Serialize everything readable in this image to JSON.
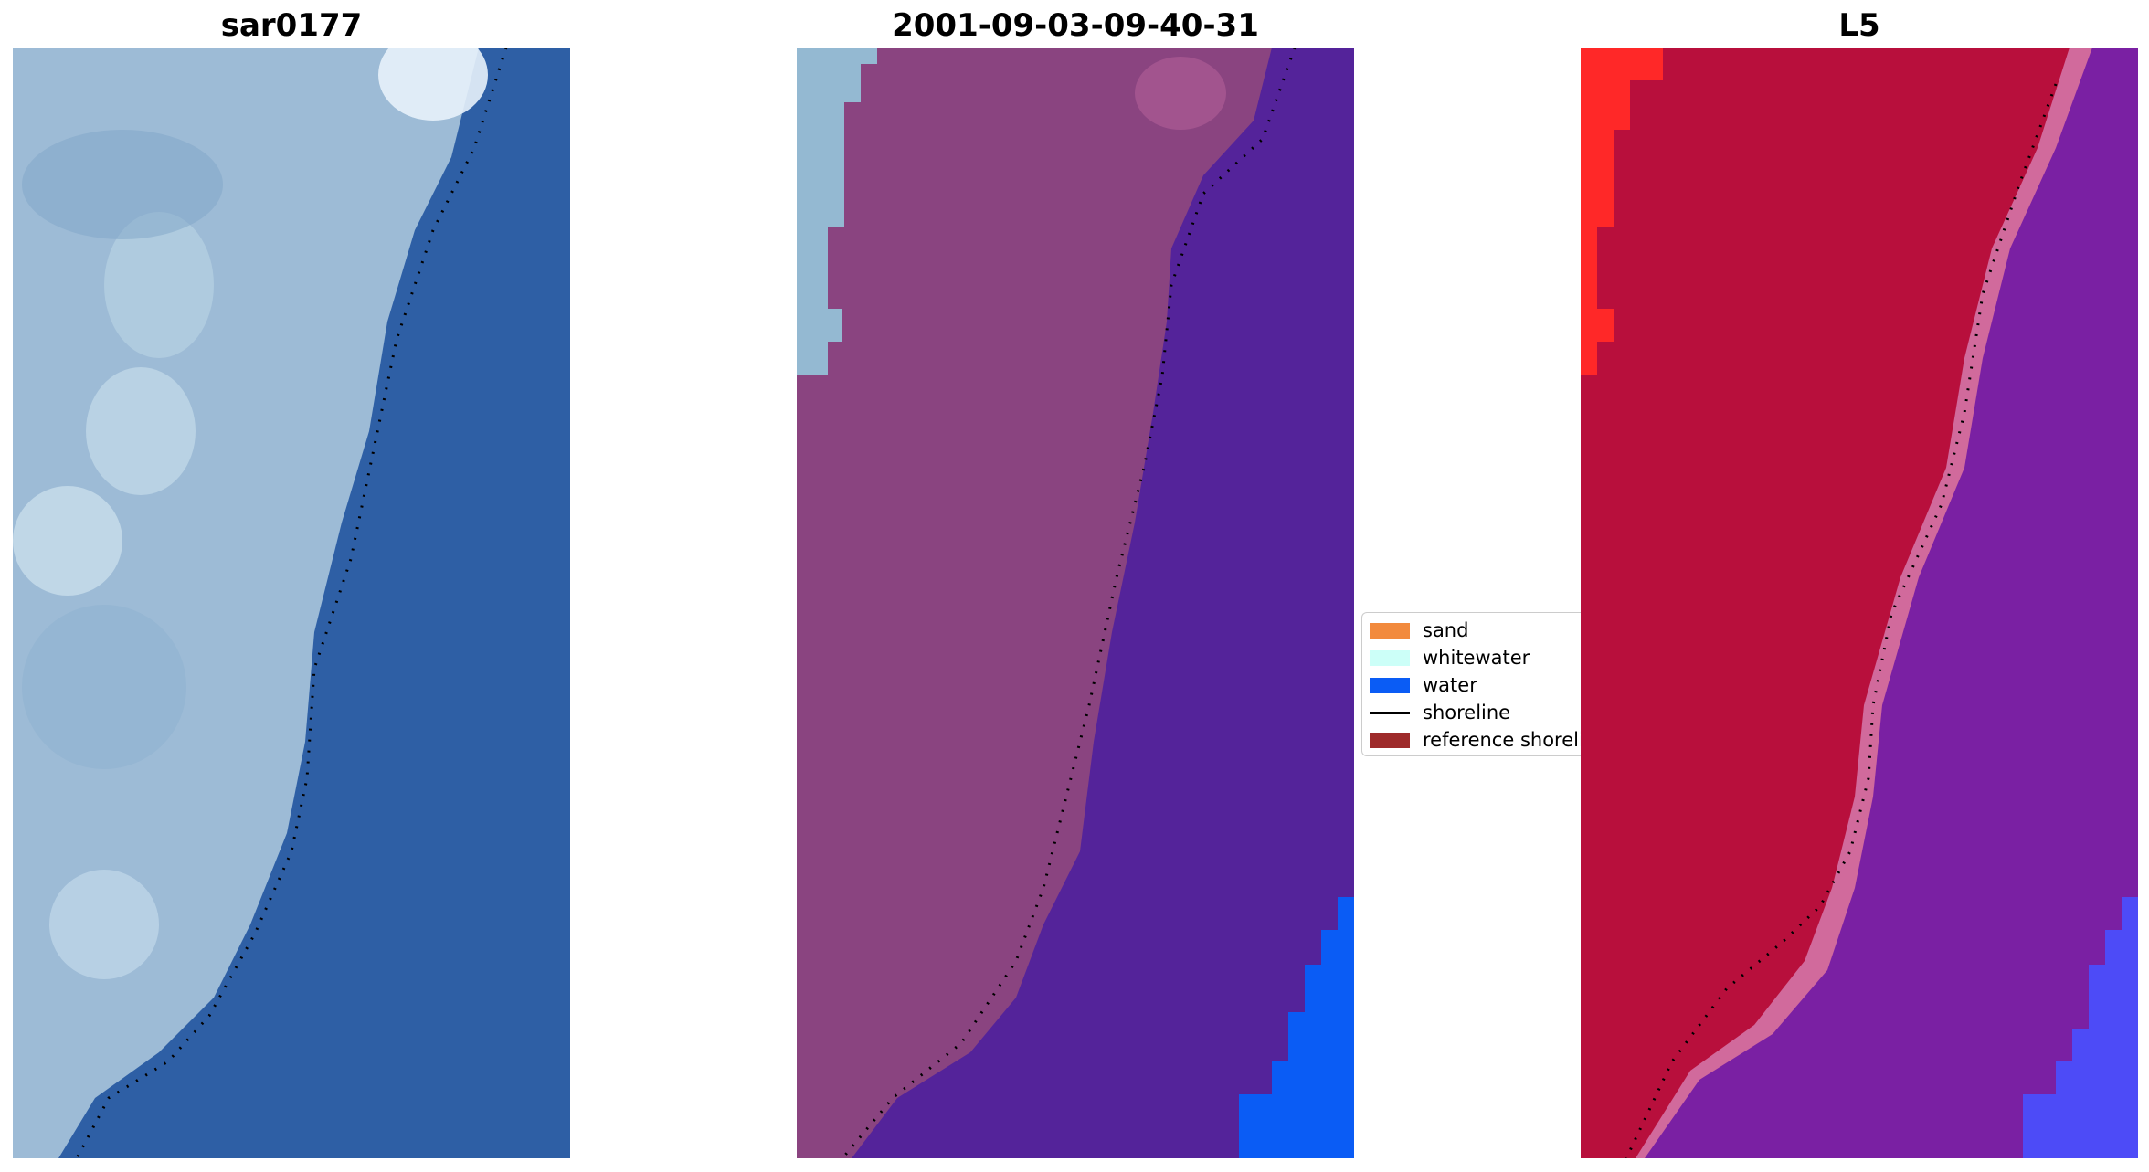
{
  "panels": [
    {
      "id": "rgb",
      "title": "sar0177"
    },
    {
      "id": "classified",
      "title": "2001-09-03-09-40-31"
    },
    {
      "id": "mndwi",
      "title": "L5"
    }
  ],
  "legend": {
    "items": [
      {
        "label": "sand",
        "color": "#f28a3d",
        "kind": "swatch"
      },
      {
        "label": "whitewater",
        "color": "#ccfff8",
        "kind": "swatch"
      },
      {
        "label": "water",
        "color": "#0a5cf5",
        "kind": "swatch"
      },
      {
        "label": "shoreline",
        "color": "#000000",
        "kind": "line"
      },
      {
        "label": "reference shoreline",
        "color": "#9e2a2a",
        "kind": "swatch"
      }
    ]
  },
  "colors": {
    "rgb_water": "#2e5fa5",
    "rgb_land": "#9dbbd6",
    "classified_land": "#8a4480",
    "classified_water": "#54239a",
    "classified_whitewater": "#94b9d2",
    "classified_deepwater": "#0a5cf5",
    "mndwi_land": "#b80f3c",
    "mndwi_water": "#7a20a3",
    "mndwi_bright": "#ff2828",
    "mndwi_deepwater": "#4d4bf7"
  }
}
